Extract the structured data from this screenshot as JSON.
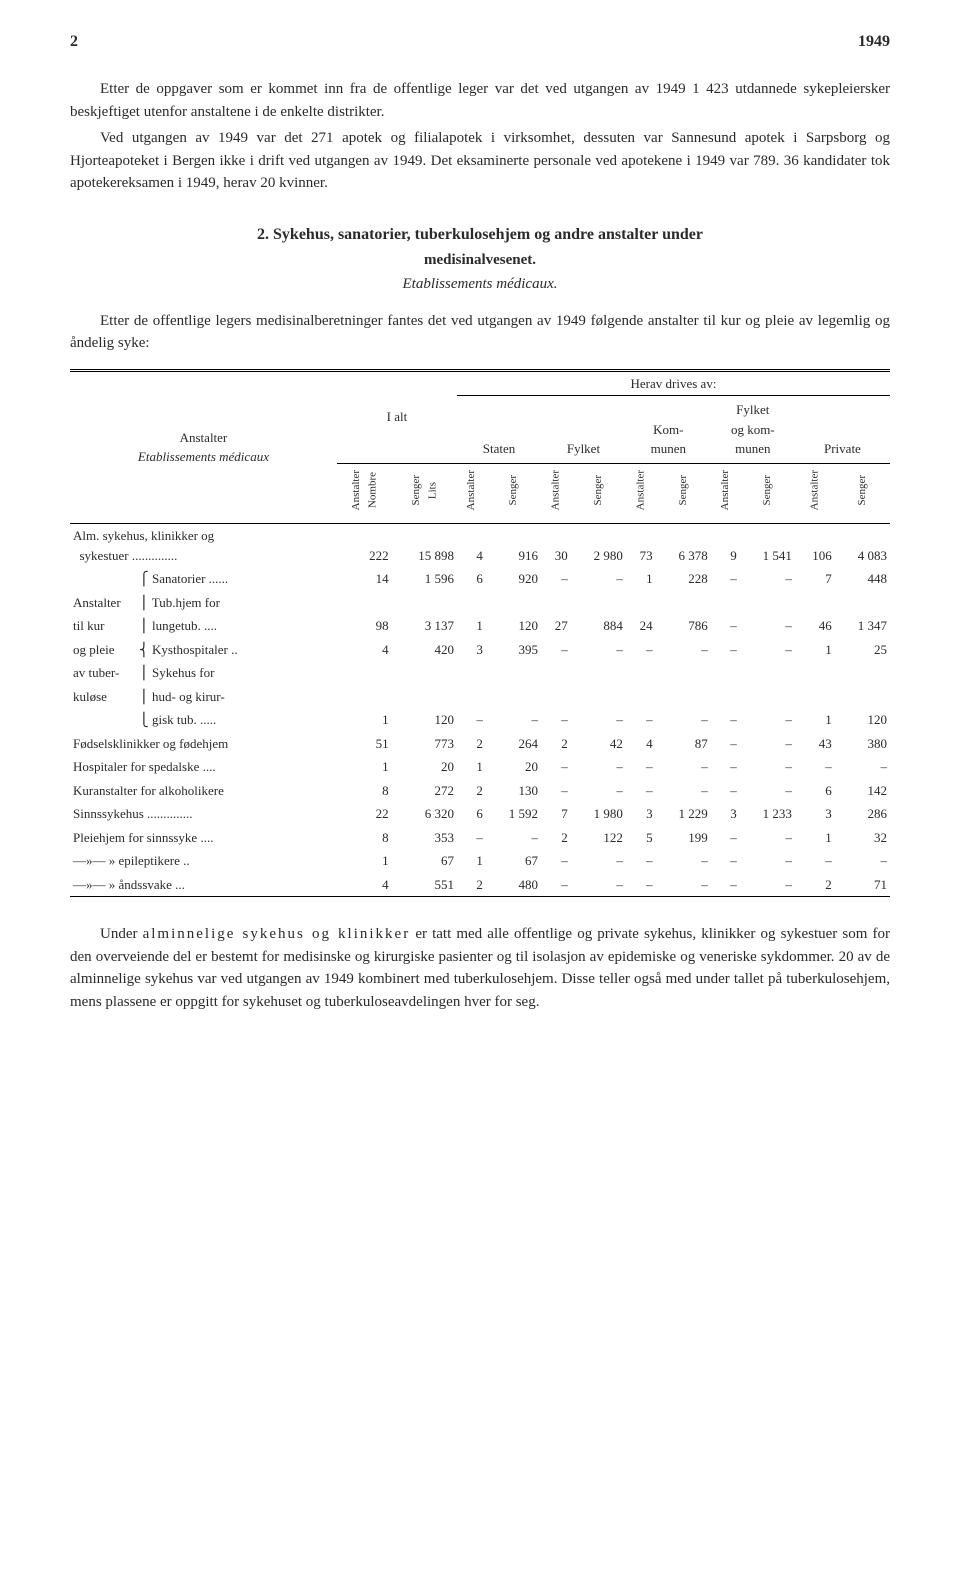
{
  "page_number": "2",
  "year": "1949",
  "para1": "Etter de oppgaver som er kommet inn fra de offentlige leger var det ved utgangen av 1949 1 423 utdannede sykepleiersker beskjeftiget utenfor anstaltene i de enkelte distrikter.",
  "para2": "Ved utgangen av 1949 var det 271 apotek og filialapotek i virksomhet, dessuten var Sannesund apotek i Sarpsborg og Hjorteapoteket i Bergen ikke i drift ved utgangen av 1949. Det eksaminerte personale ved apotekene i 1949 var 789. 36 kandidater tok apotekereksamen i 1949, herav 20 kvinner.",
  "section_num": "2.",
  "section_title_line1": "Sykehus, sanatorier, tuberkulosehjem og andre anstalter under",
  "section_title_line2": "medisinalvesenet.",
  "section_italic": "Etablissements médicaux.",
  "para3": "Etter de offentlige legers medisinalberetninger fantes det ved utgangen av 1949 følgende anstalter til kur og pleie av legemlig og åndelig syke:",
  "table": {
    "row_group_label": "Anstalter",
    "row_group_sub_it": "Etablissements médicaux",
    "ialt": "I alt",
    "herav": "Herav drives av:",
    "staten": "Staten",
    "fylket": "Fylket",
    "kommunen": "Kom-\nmunen",
    "fylket_kom": "Fylket\nog kom-\nmunen",
    "private": "Private",
    "anstalter_nombre": "Anstalter\nNombre",
    "senger_lits": "Senger\nLits",
    "anstalter": "Anstalter",
    "senger": "Senger",
    "rows": [
      {
        "l1": "Alm. sykehus, klinikker og",
        "l2": "sykestuer ..............",
        "a": "222",
        "b": "15 898",
        "c": "4",
        "d": "916",
        "e": "30",
        "f": "2 980",
        "g": "73",
        "h": "6 378",
        "i": "9",
        "j": "1 541",
        "k": "106",
        "l": "4 083"
      },
      {
        "l1": "",
        "l2": "Sanatorier ......",
        "pre": "⎧",
        "a": "14",
        "b": "1 596",
        "c": "6",
        "d": "920",
        "e": "–",
        "f": "–",
        "g": "1",
        "h": "228",
        "i": "–",
        "j": "–",
        "k": "7",
        "l": "448"
      },
      {
        "l1": "Anstalter",
        "l2": "Tub.hjem for",
        "pre": "⎪",
        "a": "",
        "b": "",
        "c": "",
        "d": "",
        "e": "",
        "f": "",
        "g": "",
        "h": "",
        "i": "",
        "j": "",
        "k": "",
        "l": ""
      },
      {
        "l1": "til kur",
        "l2": "lungetub. ....",
        "pre": "⎪",
        "a": "98",
        "b": "3 137",
        "c": "1",
        "d": "120",
        "e": "27",
        "f": "884",
        "g": "24",
        "h": "786",
        "i": "–",
        "j": "–",
        "k": "46",
        "l": "1 347"
      },
      {
        "l1": "og pleie",
        "l2": "Kysthospitaler ..",
        "pre": "⎨",
        "a": "4",
        "b": "420",
        "c": "3",
        "d": "395",
        "e": "–",
        "f": "–",
        "g": "–",
        "h": "–",
        "i": "–",
        "j": "–",
        "k": "1",
        "l": "25"
      },
      {
        "l1": "av tuber-",
        "l2": "Sykehus for",
        "pre": "⎪",
        "a": "",
        "b": "",
        "c": "",
        "d": "",
        "e": "",
        "f": "",
        "g": "",
        "h": "",
        "i": "",
        "j": "",
        "k": "",
        "l": ""
      },
      {
        "l1": "kuløse",
        "l2": "hud- og kirur-",
        "pre": "⎪",
        "a": "",
        "b": "",
        "c": "",
        "d": "",
        "e": "",
        "f": "",
        "g": "",
        "h": "",
        "i": "",
        "j": "",
        "k": "",
        "l": ""
      },
      {
        "l1": "",
        "l2": "gisk tub. .....",
        "pre": "⎩",
        "a": "1",
        "b": "120",
        "c": "–",
        "d": "–",
        "e": "–",
        "f": "–",
        "g": "–",
        "h": "–",
        "i": "–",
        "j": "–",
        "k": "1",
        "l": "120"
      },
      {
        "l1": "Fødselsklinikker og fødehjem",
        "l2": "",
        "a": "51",
        "b": "773",
        "c": "2",
        "d": "264",
        "e": "2",
        "f": "42",
        "g": "4",
        "h": "87",
        "i": "–",
        "j": "–",
        "k": "43",
        "l": "380"
      },
      {
        "l1": "Hospitaler for spedalske ....",
        "l2": "",
        "a": "1",
        "b": "20",
        "c": "1",
        "d": "20",
        "e": "–",
        "f": "–",
        "g": "–",
        "h": "–",
        "i": "–",
        "j": "–",
        "k": "–",
        "l": "–"
      },
      {
        "l1": "Kuranstalter for alkoholikere",
        "l2": "",
        "a": "8",
        "b": "272",
        "c": "2",
        "d": "130",
        "e": "–",
        "f": "–",
        "g": "–",
        "h": "–",
        "i": "–",
        "j": "–",
        "k": "6",
        "l": "142"
      },
      {
        "l1": "Sinnssykehus ..............",
        "l2": "",
        "a": "22",
        "b": "6 320",
        "c": "6",
        "d": "1 592",
        "e": "7",
        "f": "1 980",
        "g": "3",
        "h": "1 229",
        "i": "3",
        "j": "1 233",
        "k": "3",
        "l": "286"
      },
      {
        "l1": "Pleiehjem for sinnssyke ....",
        "l2": "",
        "a": "8",
        "b": "353",
        "c": "–",
        "d": "–",
        "e": "2",
        "f": "122",
        "g": "5",
        "h": "199",
        "i": "–",
        "j": "–",
        "k": "1",
        "l": "32"
      },
      {
        "l1": "—»—   » epileptikere ..",
        "l2": "",
        "a": "1",
        "b": "67",
        "c": "1",
        "d": "67",
        "e": "–",
        "f": "–",
        "g": "–",
        "h": "–",
        "i": "–",
        "j": "–",
        "k": "–",
        "l": "–"
      },
      {
        "l1": "—»—   » åndssvake ...",
        "l2": "",
        "a": "4",
        "b": "551",
        "c": "2",
        "d": "480",
        "e": "–",
        "f": "–",
        "g": "–",
        "h": "–",
        "i": "–",
        "j": "–",
        "k": "2",
        "l": "71"
      }
    ]
  },
  "para4_pre": "Under ",
  "para4_spaced1": "alminnelige sykehus og klinikker",
  "para4_post": " er tatt med alle offentlige og private sykehus, klinikker og sykestuer som for den overveiende del er bestemt for medisinske og kirurgiske pasienter og til isolasjon av epidemiske og veneriske sykdommer. 20 av de alminnelige sykehus var ved utgangen av 1949 kombinert med tuberkulosehjem. Disse teller også med under tallet på tuberkulosehjem, mens plassene er oppgitt for sykehuset og tuberkuloseavdelingen hver for seg."
}
